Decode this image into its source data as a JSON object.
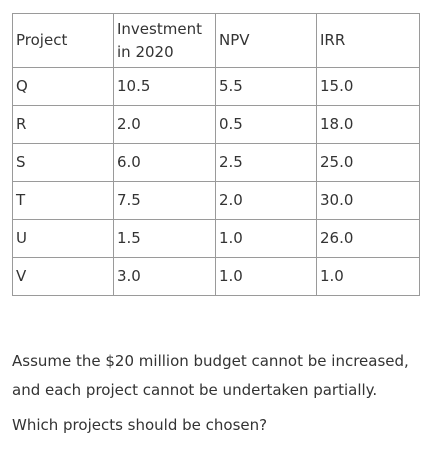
{
  "table": {
    "headers": {
      "project": "Project",
      "investment_line1": "Investment",
      "investment_line2": "in 2020",
      "npv": "NPV",
      "irr": "IRR"
    },
    "rows": [
      {
        "project": "Q",
        "investment": "10.5",
        "npv": "5.5",
        "irr": "15.0"
      },
      {
        "project": "R",
        "investment": "2.0",
        "npv": "0.5",
        "irr": "18.0"
      },
      {
        "project": "S",
        "investment": "6.0",
        "npv": "2.5",
        "irr": "25.0"
      },
      {
        "project": "T",
        "investment": "7.5",
        "npv": "2.0",
        "irr": "30.0"
      },
      {
        "project": "U",
        "investment": "1.5",
        "npv": "1.0",
        "irr": "26.0"
      },
      {
        "project": "V",
        "investment": "3.0",
        "npv": "1.0",
        "irr": "1.0"
      }
    ]
  },
  "question": {
    "assumption": "Assume the $20 million budget cannot be increased, and each project cannot be undertaken partially.",
    "prompt": "Which projects should be chosen?"
  }
}
